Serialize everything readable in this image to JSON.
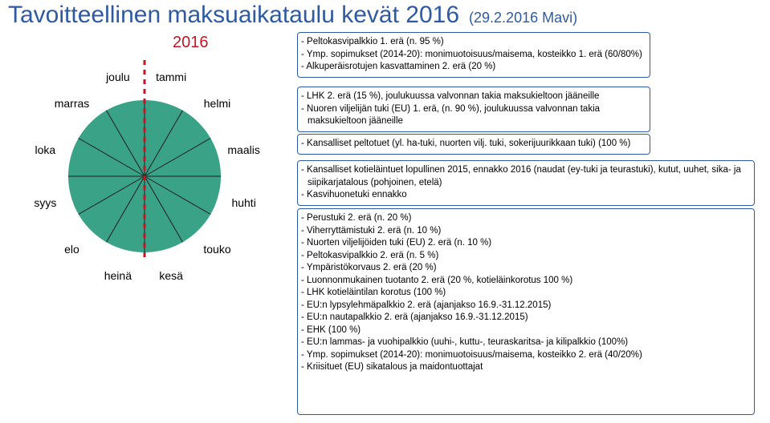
{
  "title": "Tavoitteellinen maksuaikataulu kevät 2016",
  "subtitle": "(29.2.2016 Mavi)",
  "title_color": "#2e5aa3",
  "year": "2016",
  "year_color": "#c41524",
  "wheel": {
    "radius": 95,
    "label_radius": 128,
    "fill": "#3aa287",
    "spoke": "#1d1d1d",
    "red_line": "#c41524",
    "red_dash": "6,6",
    "months": [
      {
        "label": "tammi",
        "angle": -75
      },
      {
        "label": "helmi",
        "angle": -45
      },
      {
        "label": "maalis",
        "angle": -15
      },
      {
        "label": "huhti",
        "angle": 15
      },
      {
        "label": "touko",
        "angle": 45
      },
      {
        "label": "kesä",
        "angle": 75
      },
      {
        "label": "heinä",
        "angle": 105
      },
      {
        "label": "elo",
        "angle": 135
      },
      {
        "label": "syys",
        "angle": 165
      },
      {
        "label": "loka",
        "angle": 195
      },
      {
        "label": "marras",
        "angle": 225
      },
      {
        "label": "joulu",
        "angle": 255
      }
    ]
  },
  "boxes": {
    "b1": [
      "Peltokasvipalkkio 1. erä (n. 95 %)",
      "Ymp. sopimukset (2014-20): monimuotoisuus/maisema, kosteikko 1. erä (60/80%)",
      "Alkuperäisrotujen kasvattaminen 2. erä (20 %)"
    ],
    "b2": [
      "LHK 2. erä (15 %), joulukuussa valvonnan takia maksukieltoon jääneille",
      "Nuoren viljelijän tuki (EU) 1. erä, (n. 90 %), joulukuussa valvonnan takia maksukieltoon jääneille"
    ],
    "b3": [
      "Kansalliset peltotuet (yl. ha-tuki, nuorten vilj. tuki, sokerijuurikkaan tuki) (100 %)"
    ],
    "b4": [
      "Kansalliset kotieläintuet lopullinen 2015, ennakko 2016 (naudat (ey-tuki ja teurastuki), kutut, uuhet, sika- ja siipikarjatalous (pohjoinen, etelä)",
      "Kasvihuonetuki ennakko"
    ],
    "b5": [
      "Perustuki 2. erä (n. 20 %)",
      "Viherryttämistuki 2. erä (n. 10 %)",
      "Nuorten viljelijöiden tuki (EU) 2. erä (n. 10 %)",
      "Peltokasvipalkkio 2. erä (n. 5 %)",
      "Ympäristökorvaus 2. erä (20 %)",
      "Luonnonmukainen tuotanto 2. erä (20 %, kotieläinkorotus 100 %)",
      "LHK kotieläintilan korotus (100 %)",
      "EU:n lypsylehmäpalkkio 2. erä (ajanjakso 16.9.-31.12.2015)",
      "EU:n nautapalkkio 2. erä (ajanjakso 16.9.-31.12.2015)",
      "EHK (100 %)",
      "EU:n lammas- ja vuohipalkkio (uuhi-, kuttu-, teuraskaritsa- ja kilipalkkio (100%)",
      "Ymp. sopimukset (2014-20): monimuotoisuus/maisema, kosteikko 2. erä (40/20%)",
      "Kriisituet (EU) sikatalous ja maidontuottajat"
    ]
  }
}
